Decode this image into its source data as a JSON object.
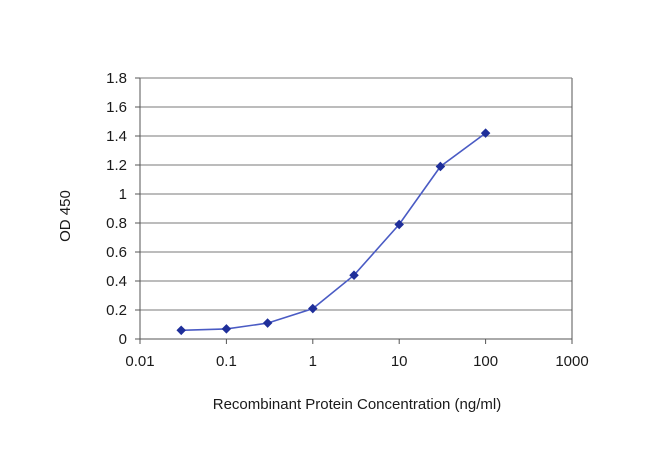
{
  "chart_data": {
    "type": "line",
    "title": "",
    "xlabel": "Recombinant Protein Concentration (ng/ml)",
    "ylabel": "OD 450",
    "x_scale": "log",
    "xlim": [
      0.01,
      1000
    ],
    "ylim": [
      0,
      1.8
    ],
    "x_ticks": [
      0.01,
      0.1,
      1,
      10,
      100,
      1000
    ],
    "x_tick_labels": [
      "0.01",
      "0.1",
      "1",
      "10",
      "100",
      "1000"
    ],
    "y_ticks": [
      0,
      0.2,
      0.4,
      0.6,
      0.8,
      1,
      1.2,
      1.4,
      1.6,
      1.8
    ],
    "y_tick_labels": [
      "0",
      "0.2",
      "0.4",
      "0.6",
      "0.8",
      "1",
      "1.2",
      "1.4",
      "1.6",
      "1.8"
    ],
    "grid": "horizontal",
    "legend": "none",
    "series": [
      {
        "x": [
          0.03,
          0.1,
          0.3,
          1,
          3,
          10,
          30,
          100
        ],
        "y": [
          0.06,
          0.07,
          0.11,
          0.21,
          0.44,
          0.79,
          1.19,
          1.42
        ]
      }
    ],
    "colors": {
      "line": "#4a5bc4",
      "marker": "#1f2f9a",
      "grid": "#7a7a7a",
      "axis": "#555555"
    }
  }
}
